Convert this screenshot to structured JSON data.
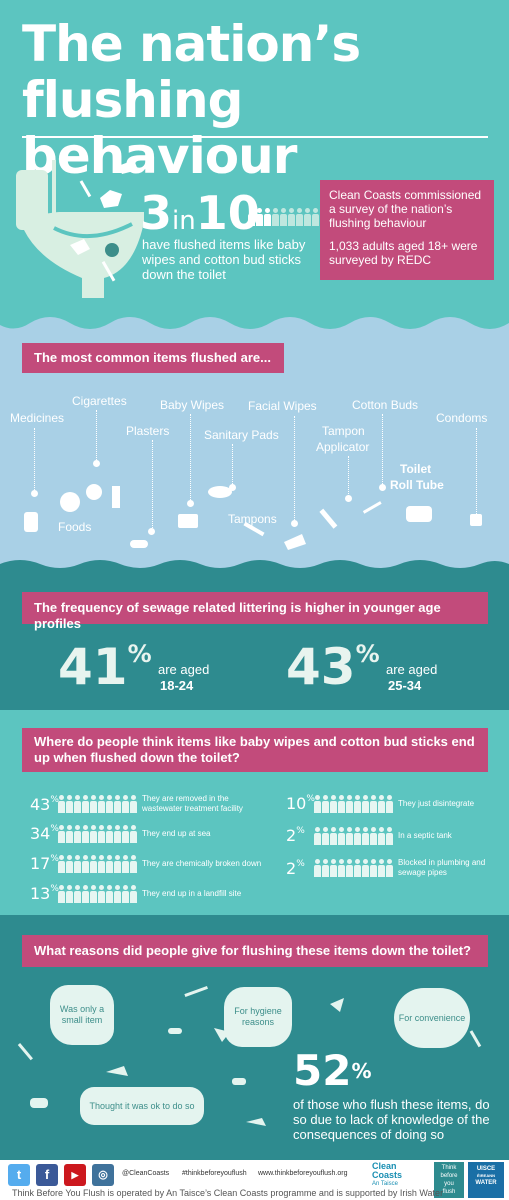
{
  "header": {
    "title_line1": "The nation’s",
    "title_line2": "flushing behaviour"
  },
  "stat_3in10": {
    "num_a": "3",
    "word_in": "in",
    "num_b": "10",
    "text": "have flushed items like baby wipes and cotton bud sticks down the toilet"
  },
  "survey": {
    "line1": "Clean Coasts commissioned a survey of the nation’s flushing behaviour",
    "line2": "1,033 adults aged 18+ were surveyed by REDC"
  },
  "items_section": {
    "heading": "The most common items flushed are...",
    "items": [
      "Medicines",
      "Cigarettes",
      "Plasters",
      "Baby Wipes",
      "Sanitary Pads",
      "Facial Wipes",
      "Tampon",
      "Applicator",
      "Cotton Buds",
      "Condoms",
      "Toilet",
      "Roll Tube",
      "Foods",
      "Tampons"
    ]
  },
  "age_section": {
    "heading": "The frequency of sewage related littering is higher in younger age profiles",
    "stats": [
      {
        "pct": "41",
        "sign": "%",
        "label": "are aged",
        "range": "18-24"
      },
      {
        "pct": "43",
        "sign": "%",
        "label": "are aged",
        "range": "25-34"
      }
    ]
  },
  "end_up_section": {
    "heading": "Where do people think items like baby wipes and cotton bud sticks end up when flushed down the toilet?",
    "left": [
      {
        "pct": "43",
        "sign": "%",
        "text": "They are removed in the wastewater treatment facility"
      },
      {
        "pct": "34",
        "sign": "%",
        "text": "They end up at sea"
      },
      {
        "pct": "17",
        "sign": "%",
        "text": "They are chemically broken down"
      },
      {
        "pct": "13",
        "sign": "%",
        "text": "They end up in a landfill site"
      }
    ],
    "right": [
      {
        "pct": "10",
        "sign": "%",
        "text": "They just disintegrate"
      },
      {
        "pct": "2",
        "sign": "%",
        "text": "In a septic tank"
      },
      {
        "pct": "2",
        "sign": "%",
        "text": "Blocked in plumbing and sewage pipes"
      }
    ]
  },
  "reasons_section": {
    "heading": "What reasons did people give for flushing these items down the toilet?",
    "bubbles": [
      "Was only a small item",
      "For hygiene reasons",
      "For convenience",
      "Thought it was ok to do so"
    ],
    "stat_pct": "52",
    "stat_sign": "%",
    "stat_text": "of those who flush these items, do so due to lack of knowledge of the consequences of doing so"
  },
  "footer": {
    "handle": "@CleanCoasts",
    "hashtag": "#thinkbeforeyouflush",
    "url": "www.thinkbeforeyouflush.org",
    "credit": "Think Before You Flush is operated by An Taisce’s Clean Coasts programme and is supported by Irish Water",
    "logo_clean": "Clean",
    "logo_coasts": "Coasts",
    "logo_antaisce": "An Taisce",
    "logo_think": "Think",
    "logo_before": "before",
    "logo_you": "you",
    "logo_flush": "flush",
    "logo_uisce": "UISCE",
    "logo_eireann": "ÉIREANN",
    "logo_water": "WATER"
  },
  "colors": {
    "teal": "#5cc5c0",
    "dark_teal": "#2e8b8f",
    "magenta": "#c24b7b",
    "light_blue": "#a9d0e6"
  }
}
